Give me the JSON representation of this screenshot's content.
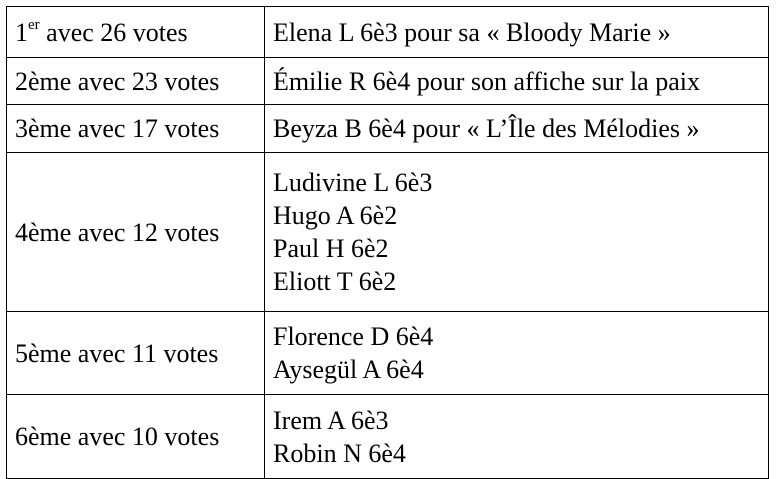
{
  "rows": [
    {
      "rank_prefix": "1",
      "rank_suffix": "er",
      "rank_rest": " avec 26 votes",
      "winners": [
        "Elena L 6è3 pour sa « Bloody Marie »"
      ]
    },
    {
      "rank": "2ème avec 23 votes",
      "winners": [
        "Émilie R 6è4 pour son affiche sur la paix"
      ]
    },
    {
      "rank": "3ème avec 17 votes",
      "winners": [
        "Beyza B 6è4 pour « L’Île des Mélodies »"
      ]
    },
    {
      "rank": "4ème avec 12 votes",
      "winners": [
        "Ludivine L 6è3",
        "Hugo A 6è2",
        "Paul H 6è2",
        "Eliott T 6è2"
      ]
    },
    {
      "rank": "5ème avec 11 votes",
      "winners": [
        "Florence D 6è4",
        "Aysegül A 6è4"
      ]
    },
    {
      "rank": "6ème avec 10 votes",
      "winners": [
        "Irem A 6è3",
        "Robin N 6è4"
      ]
    }
  ]
}
